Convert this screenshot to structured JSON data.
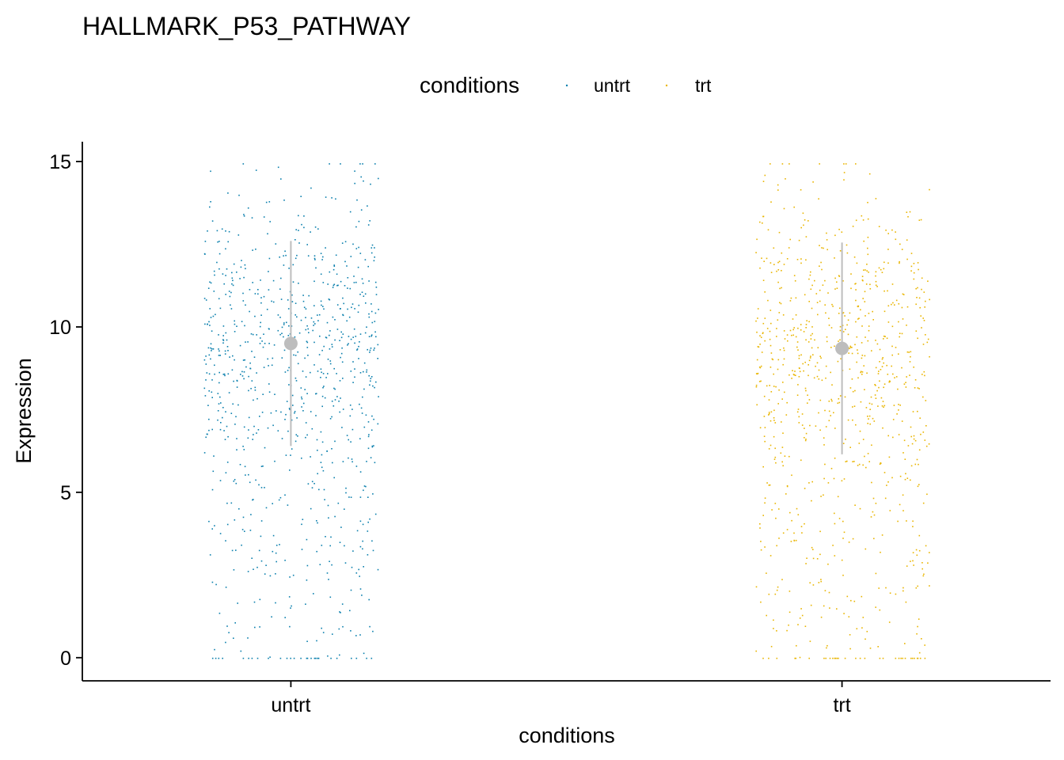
{
  "chart_data": {
    "type": "scatter",
    "title": "HALLMARK_P53_PATHWAY",
    "xlabel": "conditions",
    "ylabel": "Expression",
    "categories": [
      "untrt",
      "trt"
    ],
    "ylim": [
      -0.7,
      15.6
    ],
    "yticks": [
      0,
      5,
      10,
      15
    ],
    "grid": false,
    "legend": {
      "title": "conditions",
      "placement": "top",
      "entries": [
        "untrt",
        "trt"
      ]
    },
    "series": [
      {
        "name": "untrt",
        "color": "#0a7fad",
        "summary": {
          "mean": 9.5,
          "lower": 6.4,
          "upper": 12.6
        }
      },
      {
        "name": "trt",
        "color": "#e9b500",
        "summary": {
          "mean": 9.35,
          "lower": 6.15,
          "upper": 12.55
        }
      }
    ],
    "summary_color": "#bdbdbd"
  }
}
